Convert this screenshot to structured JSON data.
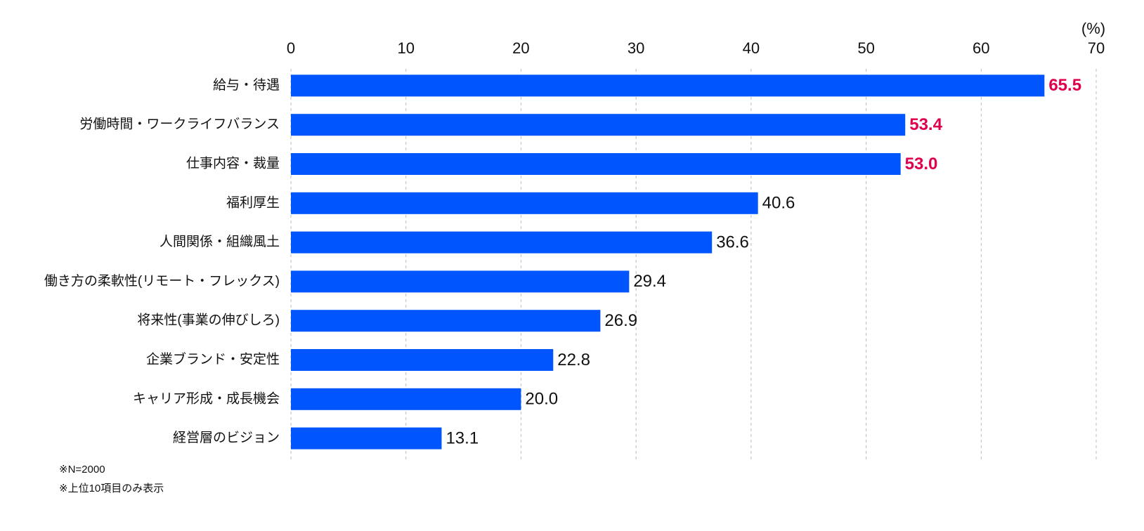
{
  "chart_data": {
    "type": "barh",
    "unit_label": "(%)",
    "categories": [
      "給与・待遇",
      "労働時間・ワークライフバランス",
      "仕事内容・裁量",
      "福利厚生",
      "人間関係・組織風土",
      "働き方の柔軟性(リモート・フレックス)",
      "将来性(事業の伸びしろ)",
      "企業ブランド・安定性",
      "キャリア形成・成長機会",
      "経営層のビジョン"
    ],
    "values": [
      65.5,
      53.4,
      53.0,
      40.6,
      36.6,
      29.4,
      26.9,
      22.8,
      20.0,
      13.1
    ],
    "value_labels": [
      "65.5",
      "53.4",
      "53.0",
      "40.6",
      "36.6",
      "29.4",
      "26.9",
      "22.8",
      "20.0",
      "13.1"
    ],
    "value_label_colors": [
      "#e0004d",
      "#e0004d",
      "#e0004d",
      "#111111",
      "#111111",
      "#111111",
      "#111111",
      "#111111",
      "#111111",
      "#111111"
    ],
    "color": "#0055ff",
    "xlim": [
      0,
      70
    ],
    "xticks": [
      0,
      10,
      20,
      30,
      40,
      50,
      60,
      70
    ],
    "grid": true,
    "notes": [
      "※N=2000",
      "※上位10項目のみ表示"
    ]
  }
}
